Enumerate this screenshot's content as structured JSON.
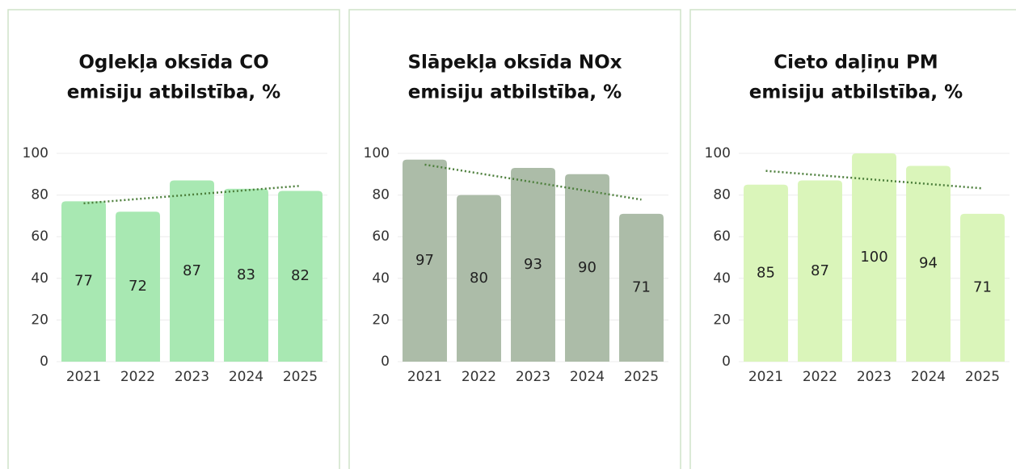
{
  "chart_data": [
    {
      "type": "bar",
      "title": [
        "Oglekļa oksīda CO",
        "emisiju atbilstība, %"
      ],
      "categories": [
        "2021",
        "2022",
        "2023",
        "2024",
        "2025"
      ],
      "values": [
        77,
        72,
        87,
        83,
        82
      ],
      "color": "#a8e8b2",
      "ylim": [
        0,
        100
      ],
      "yticks": [
        0,
        20,
        40,
        60,
        80,
        100
      ],
      "grid": true,
      "trendline": true,
      "trend_color": "#4d7f3c"
    },
    {
      "type": "bar",
      "title": [
        "Slāpekļa oksīda NOx",
        "emisiju atbilstība, %"
      ],
      "categories": [
        "2021",
        "2022",
        "2023",
        "2024",
        "2025"
      ],
      "values": [
        97,
        80,
        93,
        90,
        71
      ],
      "color": "#acbca8",
      "ylim": [
        0,
        100
      ],
      "yticks": [
        0,
        20,
        40,
        60,
        80,
        100
      ],
      "grid": true,
      "trendline": true,
      "trend_color": "#4d7f3c"
    },
    {
      "type": "bar",
      "title": [
        "Cieto daļiņu PM",
        "emisiju atbilstība, %"
      ],
      "categories": [
        "2021",
        "2022",
        "2023",
        "2024",
        "2025"
      ],
      "values": [
        85,
        87,
        100,
        94,
        71
      ],
      "color": "#daf5ba",
      "ylim": [
        0,
        100
      ],
      "yticks": [
        0,
        20,
        40,
        60,
        80,
        100
      ],
      "grid": true,
      "trendline": true,
      "trend_color": "#4d7f3c"
    }
  ]
}
